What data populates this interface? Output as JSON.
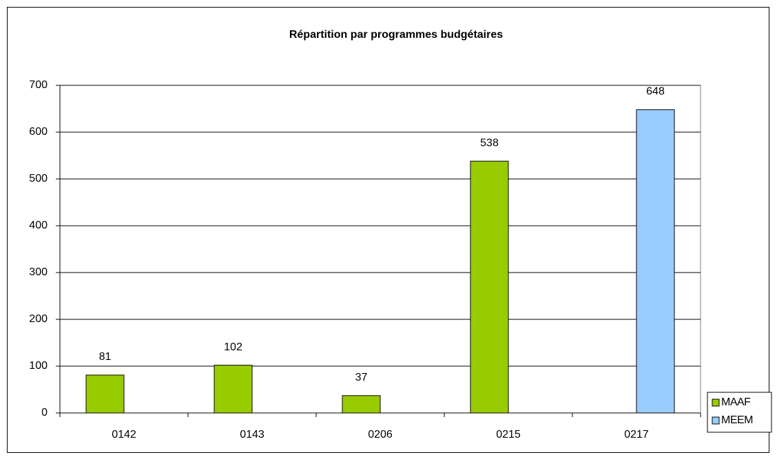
{
  "chart_data": {
    "type": "bar",
    "title": "Répartition par programmes budgétaires",
    "categories": [
      "0142",
      "0143",
      "0206",
      "0215",
      "0217"
    ],
    "series": [
      {
        "name": "MAAF",
        "color": "#99cc00",
        "values": [
          81,
          102,
          37,
          538,
          null
        ]
      },
      {
        "name": "MEEM",
        "color": "#99ccff",
        "values": [
          null,
          null,
          null,
          null,
          648
        ]
      }
    ],
    "ylim": [
      0,
      700
    ],
    "yticks": [
      0,
      100,
      200,
      300,
      400,
      500,
      600,
      700
    ],
    "grid": true,
    "legend": "right"
  }
}
